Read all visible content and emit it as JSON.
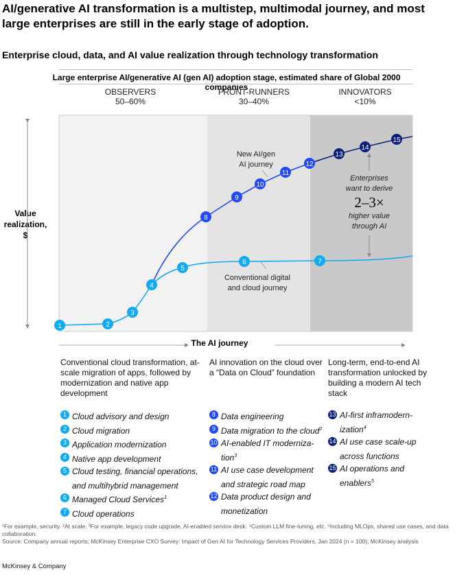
{
  "title": "AI/generative AI transformation is a multistep, multimodal journey, and most large enterprises are still in the early stage of adoption.",
  "subtitle": "Enterprise cloud, data, and AI value realization through technology transformation",
  "chart_title": "Large enterprise AI/generative AI (gen AI) adoption stage, estimated share of Global 2000 companies",
  "stages": [
    {
      "name": "OBSERVERS",
      "share": "50–60%"
    },
    {
      "name": "FRONT-RUNNERS",
      "share": "30–40%"
    },
    {
      "name": "INNOVATORS",
      "share": "<10%"
    }
  ],
  "y_axis_label": "Value realization, $",
  "x_axis_label": "The AI journey",
  "annotations": {
    "ai_journey_line1": "New AI/gen",
    "ai_journey_line2": "AI journey",
    "conv_line1": "Conventional digital",
    "conv_line2": "and cloud journey",
    "ent1": "Enterprises",
    "ent2": "want to derive",
    "multiplier": "2–3×",
    "ent3": "higher value",
    "ent4": "through AI"
  },
  "colors": {
    "light": "#12aaf0",
    "mid": "#2148f5",
    "dark": "#0b1f78",
    "band1": "#f2f2f2",
    "band2": "#e4e4e4",
    "band3": "#c9c9c9"
  },
  "columns": [
    {
      "desc": "Conventional cloud transformation, at-scale migration of apps, followed by modernization and native app development",
      "items": [
        {
          "n": "1",
          "text": "Cloud advisory and design",
          "sup": "",
          "tone": "light"
        },
        {
          "n": "2",
          "text": "Cloud migration",
          "sup": "",
          "tone": "light"
        },
        {
          "n": "3",
          "text": "Application modernization",
          "sup": "",
          "tone": "light"
        },
        {
          "n": "4",
          "text": "Native app development",
          "sup": "",
          "tone": "light"
        },
        {
          "n": "5",
          "text": "Cloud testing, financial operations, and multihybrid management",
          "sup": "",
          "tone": "light"
        },
        {
          "n": "6",
          "text": "Managed Cloud Services",
          "sup": "1",
          "tone": "light"
        },
        {
          "n": "7",
          "text": "Cloud operations",
          "sup": "",
          "tone": "light"
        }
      ]
    },
    {
      "desc": "AI innovation on the cloud over a “Data on Cloud” foundation",
      "items": [
        {
          "n": "8",
          "text": "Data engineering",
          "sup": "",
          "tone": "mid"
        },
        {
          "n": "9",
          "text": "Data migration to the cloud",
          "sup": "2",
          "tone": "mid"
        },
        {
          "n": "10",
          "text": "AI-enabled IT moderniza-tion",
          "sup": "3",
          "tone": "mid"
        },
        {
          "n": "11",
          "text": "AI use case development and strategic road map",
          "sup": "",
          "tone": "mid"
        },
        {
          "n": "12",
          "text": "Data product design and monetization",
          "sup": "",
          "tone": "mid"
        }
      ]
    },
    {
      "desc": "Long-term, end-to-end AI transformation unlocked by building a modern AI tech stack",
      "items": [
        {
          "n": "13",
          "text": "AI-first inframodern-ization",
          "sup": "4",
          "tone": "dark"
        },
        {
          "n": "14",
          "text": "AI use case scale-up across functions",
          "sup": "",
          "tone": "dark"
        },
        {
          "n": "15",
          "text": "AI operations and enablers",
          "sup": "5",
          "tone": "dark"
        }
      ]
    }
  ],
  "footnotes": "¹For example, security. ²At scale. ³For example, legacy code upgrade, AI-enabled service desk. ⁴Custom LLM fine-tuning, etc. ⁵Including MLOps, shared use cases, and data collaboration.",
  "source": "Source: Company annual reports; McKinsey Enterprise CXO Survey: Impact of Gen AI for Technology Services Providers, Jan 2024 (n = 100); McKinsey analysis",
  "brand": "McKinsey & Company"
}
